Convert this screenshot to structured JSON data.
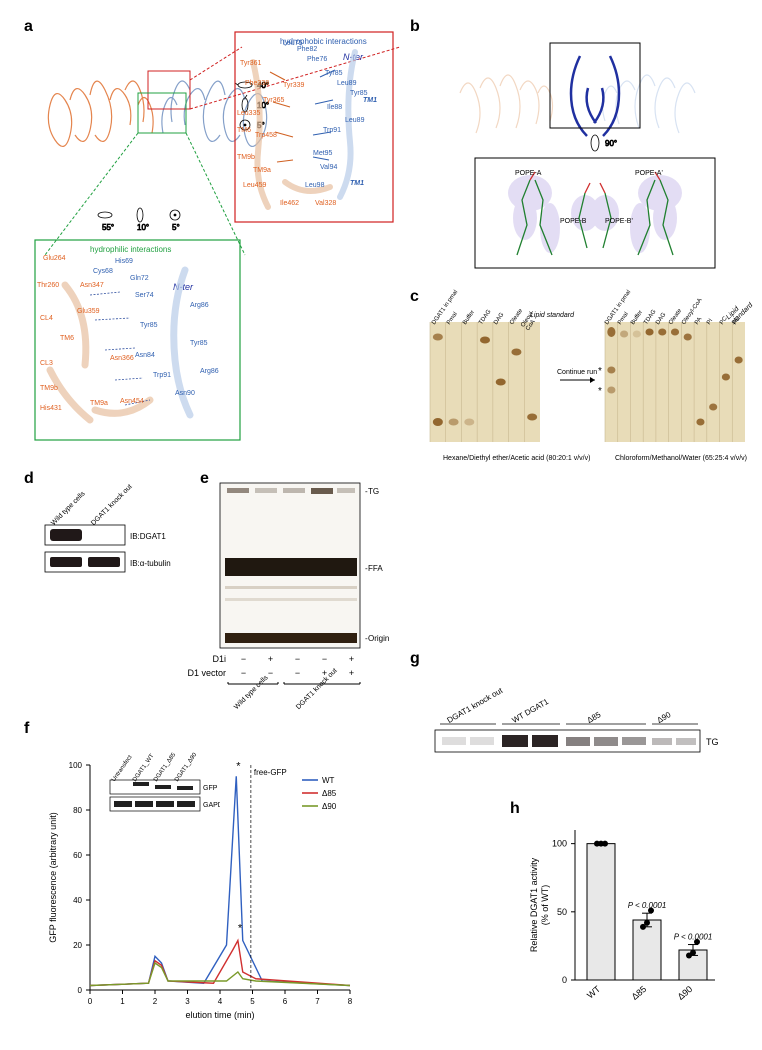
{
  "panels": {
    "a": "a",
    "b": "b",
    "c": "c",
    "d": "d",
    "e": "e",
    "f": "f",
    "g": "g",
    "h": "h"
  },
  "panel_a": {
    "hydrophobic_title": "hydrophobic interactions",
    "hydrophilic_title": "hydrophilic interactions",
    "n_ter": "N-ter",
    "structure_labels_blue": [
      "Phe82",
      "Leu75",
      "Phe76",
      "Tyr85",
      "Leu89",
      "Tyr85",
      "Ile88",
      "Trp91",
      "Leu89",
      "Met95",
      "Val94",
      "Leu98",
      "TM1",
      "TM1"
    ],
    "structure_labels_orange": [
      "Tyr361",
      "Phe338",
      "Tyr339",
      "Tyr365",
      "Leu335",
      "TM6",
      "Trp458",
      "TM9b",
      "TM9a",
      "Leu459",
      "Ile462",
      "Val328"
    ],
    "hydrophilic_blue": [
      "His69",
      "Cys68",
      "Gln72",
      "Ser74",
      "N-ter",
      "Arg86",
      "Tyr85",
      "Trp91",
      "Asn90",
      "Asn84",
      "Tyr85",
      "Arg86"
    ],
    "hydrophilic_orange": [
      "Glu264",
      "Thr260",
      "Asn347",
      "Glu359",
      "CL4",
      "TM6",
      "CL3",
      "TM9b",
      "His431",
      "Asn366",
      "TM9a",
      "Asn454"
    ],
    "rotations": [
      "40°",
      "10°",
      "5°",
      "55°",
      "10°",
      "5°"
    ]
  },
  "panel_b": {
    "pope_labels": [
      "POPE-A",
      "POPE-A'",
      "POPE-B",
      "POPE-B'"
    ],
    "rotation": "90°"
  },
  "panel_c": {
    "left_lanes": [
      "DGAT1 in pmal",
      "Pmal",
      "Buffer",
      "TDAG",
      "DAG",
      "Oleate",
      "Oleoyl-CoA"
    ],
    "left_header": "Lipid standard",
    "left_solvent": "Hexane/Diethyl ether/Acetic acid\n(80:20:1 v/v/v)",
    "arrow_text": "Continue run",
    "right_lanes": [
      "DGAT1 in pmal",
      "Pmal",
      "Buffer",
      "TDAG",
      "DAG",
      "Oleate",
      "Oleoyl-CoA",
      "PA",
      "PI",
      "PC",
      "PE"
    ],
    "right_header": "Lipid standard",
    "right_solvent": "Chloroform/Methanol/Water\n(65:25:4 v/v/v)"
  },
  "panel_d": {
    "lanes": [
      "Wild type cells",
      "DGAT1 knock out"
    ],
    "blots": [
      "IB:DGAT1",
      "IB:α-tubulin"
    ]
  },
  "panel_e": {
    "bands": [
      "TG",
      "FFA",
      "Origin"
    ],
    "row_labels": [
      "D1i",
      "D1 vector"
    ],
    "d1i_vals": [
      "−",
      "+",
      "−",
      "−",
      "+"
    ],
    "d1v_vals": [
      "−",
      "−",
      "−",
      "+",
      "+"
    ],
    "groups": [
      "Wild type cells",
      "DGAT1 knock out"
    ]
  },
  "panel_f": {
    "y_label": "GFP fluorescence (arbitrary unit)",
    "x_label": "elution time (min)",
    "y_ticks": [
      "0",
      "20",
      "40",
      "60",
      "80",
      "100"
    ],
    "x_ticks": [
      "0",
      "1",
      "2",
      "3",
      "4",
      "5",
      "6",
      "7",
      "8"
    ],
    "free_gfp": "free-GFP",
    "legend": [
      {
        "label": "WT",
        "color": "#3060c0"
      },
      {
        "label": "Δ85",
        "color": "#d03030"
      },
      {
        "label": "Δ90",
        "color": "#7a9a2a"
      }
    ],
    "inset_lanes": [
      "Untransfect",
      "DGAT1_WT",
      "DGAT1_Δ85",
      "DGAT1_Δ90"
    ],
    "inset_rows": [
      "GFP",
      "GAPDH"
    ],
    "series": {
      "WT": {
        "color": "#3060c0",
        "points": [
          [
            0,
            2
          ],
          [
            1.8,
            3
          ],
          [
            2.0,
            15
          ],
          [
            2.2,
            12
          ],
          [
            2.4,
            4
          ],
          [
            3.5,
            3
          ],
          [
            4.2,
            20
          ],
          [
            4.5,
            95
          ],
          [
            4.7,
            22
          ],
          [
            5.1,
            10
          ],
          [
            5.3,
            4
          ],
          [
            8,
            2
          ]
        ]
      },
      "D85": {
        "color": "#d03030",
        "points": [
          [
            0,
            2
          ],
          [
            1.8,
            3
          ],
          [
            2.0,
            13
          ],
          [
            2.2,
            11
          ],
          [
            2.4,
            4
          ],
          [
            3.8,
            3
          ],
          [
            4.4,
            18
          ],
          [
            4.55,
            22
          ],
          [
            4.7,
            8
          ],
          [
            5.1,
            5
          ],
          [
            8,
            2
          ]
        ]
      },
      "D90": {
        "color": "#7a9a2a",
        "points": [
          [
            0,
            2
          ],
          [
            1.8,
            3
          ],
          [
            2.0,
            12
          ],
          [
            2.2,
            10
          ],
          [
            2.4,
            4
          ],
          [
            4.2,
            4
          ],
          [
            4.55,
            8
          ],
          [
            4.7,
            5
          ],
          [
            5.1,
            4
          ],
          [
            8,
            2
          ]
        ]
      }
    }
  },
  "panel_g": {
    "groups": [
      "DGAT1 knock out",
      "WT DGAT1",
      "Δ85",
      "Δ90"
    ],
    "band": "TG"
  },
  "panel_h": {
    "y_label": "Relative DGAT1 activity\n(% of WT)",
    "y_ticks": [
      "0",
      "50",
      "100"
    ],
    "x_cats": [
      "WT",
      "Δ85",
      "Δ90"
    ],
    "bars": [
      {
        "cat": "WT",
        "mean": 100,
        "sem": 0,
        "points": [
          100,
          100,
          100
        ],
        "p": null,
        "color": "#e8e8e8"
      },
      {
        "cat": "Δ85",
        "mean": 44,
        "sem": 5,
        "points": [
          39,
          42,
          51
        ],
        "p": "P < 0.0001",
        "color": "#e8e8e8"
      },
      {
        "cat": "Δ90",
        "mean": 22,
        "sem": 4,
        "points": [
          18,
          20,
          28
        ],
        "p": "P < 0.0001",
        "color": "#e8e8e8"
      }
    ]
  },
  "colors": {
    "orange_struct": "#e07030",
    "blue_struct": "#7090c0",
    "darkblue": "#2030a0",
    "tlc_bg": "#d8c088",
    "tlc_spot": "#805020"
  }
}
